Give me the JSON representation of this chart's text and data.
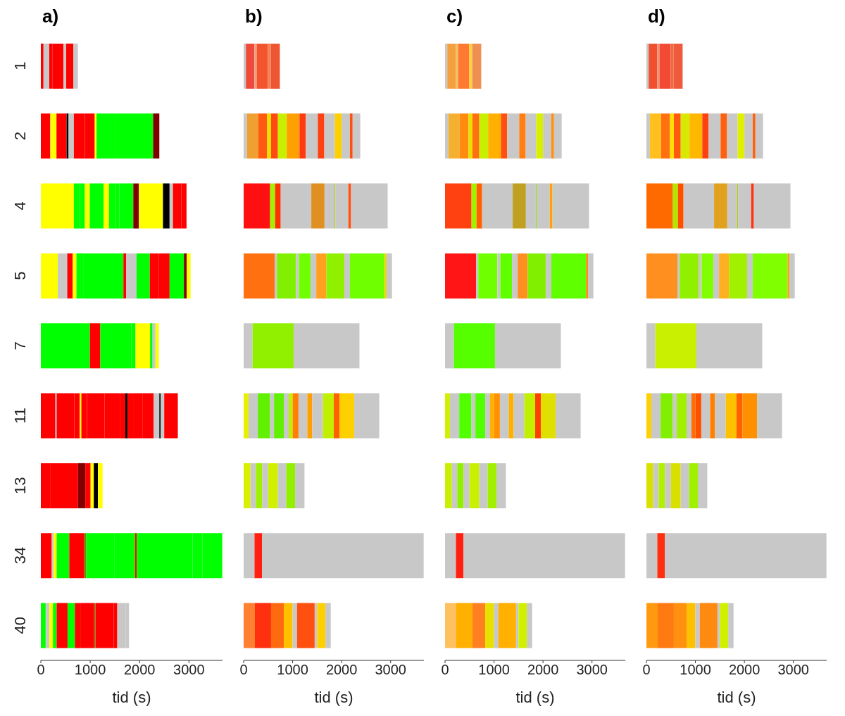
{
  "chart_data": [
    {
      "type": "bar",
      "title": "a)",
      "xlabel": "tid (s)",
      "orientation": "horizontal",
      "stacked": true,
      "categories": [
        "1",
        "2",
        "4",
        "5",
        "7",
        "11",
        "13",
        "34",
        "40"
      ],
      "xlim": [
        0,
        3680
      ],
      "xticks": [
        0,
        1000,
        2000,
        3000
      ],
      "series": [
        {
          "values": [
            54,
            192,
            669,
            343,
            994,
            295,
            187,
            221,
            98
          ],
          "colors": [
            "#ff0000",
            "#ff0000",
            "#ffff00",
            "#ffff00",
            "#00ff00",
            "#ff0000",
            "#ff0000",
            "#ff0000",
            "#00ff00"
          ]
        },
        {
          "values": [
            116,
            125,
            120,
            192,
            211,
            25,
            566,
            40,
            74
          ],
          "colors": [
            "#c8c8c8",
            "#ffff00",
            "#00ff00",
            "#c8c8c8",
            "#ff0000",
            "#c8c8c8",
            "#ff0000",
            "#c8c8c8",
            "#c8c8c8"
          ]
        },
        {
          "values": [
            62,
            205,
            103,
            111,
            630,
            359,
            147,
            59,
            74
          ],
          "colors": [
            "#ff0000",
            "#ff0000",
            "#00ff00",
            "#ff0000",
            "#00ff00",
            "#ff0000",
            "#800000",
            "#ffff00",
            "#ffff00"
          ]
        },
        {
          "values": [
            228,
            40,
            98,
            76,
            83,
            108,
            108,
            256,
            74
          ],
          "colors": [
            "#ff0000",
            "#000000",
            "#ffff00",
            "#ffff00",
            "#00ff00",
            "#ff0000",
            "#ff0000",
            "#00ff00",
            "#00ff00"
          ]
        },
        {
          "values": [
            53,
            107,
            281,
            147,
            295,
            34,
            64,
            295,
            221
          ],
          "colors": [
            "#c8c8c8",
            "#c8c8c8",
            "#00ff00",
            "#00ff00",
            "#ffff00",
            "#ffff00",
            "#ffff00",
            "#ff0000",
            "#ff0000"
          ]
        },
        {
          "values": [
            147,
            223,
            111,
            803,
            50,
            114,
            84,
            49,
            148
          ],
          "colors": [
            "#ff0000",
            "#ff0000",
            "#ffff00",
            "#00ff00",
            "#00ff00",
            "#ff0000",
            "#000000",
            "#808000",
            "#00ff00"
          ]
        },
        {
          "values": [
            90,
            200,
            120,
            58,
            59,
            354,
            94,
            566,
            123
          ],
          "colors": [
            "#c8c8c8",
            "#ff0000",
            "#00ff00",
            "#ff0000",
            "#c8c8c8",
            "#ff0000",
            "#ffff00",
            "#00ff00",
            "#ff0000"
          ]
        },
        {
          "values": [
            null,
            36,
            90,
            209,
            68,
            310,
            null,
            423,
            270
          ],
          "colors": [
            null,
            "#ffff00",
            "#00ff00",
            "#c8c8c8",
            "#ffff00",
            "#ff0000",
            null,
            "#00ff00",
            "#ff0000"
          ]
        },
        {
          "values": [
            null,
            397,
            281,
            268,
            null,
            113,
            null,
            34,
            25
          ],
          "colors": [
            null,
            "#00ff00",
            "#00ff00",
            "#00ff00",
            null,
            "#ff0000",
            null,
            "#ff0000",
            "#808000"
          ]
        },
        {
          "values": [
            null,
            749,
            111,
            178,
            null,
            44,
            null,
            1131,
            369
          ],
          "colors": [
            null,
            "#00ff00",
            "#800000",
            "#ff0000",
            null,
            "#000000",
            null,
            "#00ff00",
            "#ff0000"
          ]
        },
        {
          "values": [
            null,
            126,
            490,
            223,
            null,
            113,
            null,
            197,
            73
          ],
          "colors": [
            null,
            "#800000",
            "#ffff00",
            "#ff0000",
            null,
            "#ff0000",
            null,
            "#00ff00",
            "#ff0000"
          ]
        },
        {
          "values": [
            null,
            null,
            134,
            290,
            null,
            197,
            null,
            404,
            173
          ],
          "colors": [
            null,
            null,
            "#000000",
            "#00ff00",
            null,
            "#ff0000",
            null,
            "#00ff00",
            "#c8c8c8"
          ]
        },
        {
          "values": [
            null,
            null,
            67,
            58,
            null,
            221,
            null,
            null,
            64
          ],
          "colors": [
            null,
            null,
            "#c8c8c8",
            "#800000",
            null,
            "#ff0000",
            null,
            null,
            "#c8c8c8"
          ]
        },
        {
          "values": [
            null,
            null,
            169,
            76,
            null,
            113,
            null,
            null,
            null
          ],
          "colors": [
            null,
            null,
            "#ff0000",
            "#ffff00",
            null,
            "#c8c8c8",
            null,
            null,
            null
          ]
        },
        {
          "values": [
            null,
            null,
            107,
            null,
            null,
            25,
            null,
            null,
            null
          ],
          "colors": [
            null,
            null,
            "#ff0000",
            null,
            null,
            "#000000",
            null,
            null,
            null
          ]
        },
        {
          "values": [
            null,
            null,
            null,
            null,
            null,
            74,
            null,
            null,
            null
          ],
          "colors": [
            null,
            null,
            null,
            null,
            null,
            "#c8c8c8",
            null,
            null,
            null
          ]
        },
        {
          "values": [
            null,
            null,
            null,
            null,
            null,
            276,
            null,
            null,
            null
          ],
          "colors": [
            null,
            null,
            null,
            null,
            null,
            "#ff0000",
            null,
            null,
            null
          ]
        }
      ]
    },
    {
      "type": "bar",
      "title": "b)",
      "xlabel": "tid (s)",
      "orientation": "horizontal",
      "stacked": true,
      "tick_labels": "x",
      "categories": [
        null,
        null,
        null,
        null,
        null,
        null,
        null,
        null,
        null
      ],
      "xlim": [
        0,
        3680
      ],
      "xticks": [
        0,
        1000,
        2000,
        3000
      ],
      "series": [
        {
          "values": [
            46,
            70,
            541,
            633,
            182,
            100,
            140,
            222,
            230
          ],
          "colors": [
            "#c8c8c8",
            "#c8c8c8",
            "#ff1010",
            "#ff7010",
            "#c8c8c8",
            "#e8f000",
            "#d8f000",
            "#c8c8c8",
            "#ff8030"
          ]
        },
        {
          "values": [
            174,
            230,
            101,
            46,
            838,
            190,
            110,
            152,
            330
          ],
          "colors": [
            "#f04a3a",
            "#f0a030",
            "#a0f000",
            "#c8c8c8",
            "#90f000",
            "#c8c8c8",
            "#c8c8c8",
            "#ff2010",
            "#ff3010"
          ]
        },
        {
          "values": [
            46,
            180,
            115,
            390,
            1344,
            250,
            130,
            3301,
            260
          ],
          "colors": [
            "#f0a080",
            "#ff5a10",
            "#ff3000",
            "#80f000",
            "#c8c8c8",
            "#60f000",
            "#a0f000",
            "#c8c8c8",
            "#ff6a10"
          ]
        },
        {
          "values": [
            229,
            80,
            624,
            59,
            null,
            80,
            120,
            null,
            180
          ],
          "colors": [
            "#f2552d",
            "#e8e000",
            "#c8c8c8",
            "#c8c8c8",
            null,
            "#c8c8c8",
            "#c8c8c8",
            null,
            "#ffc000"
          ]
        },
        {
          "values": [
            60,
            140,
            270,
            239,
            null,
            200,
            200,
            null,
            90
          ],
          "colors": [
            "#f58050",
            "#ff4a10",
            "#e09020",
            "#70ff00",
            null,
            "#60f000",
            "#d0f000",
            null,
            "#c8c8c8"
          ]
        },
        {
          "values": [
            184,
            180,
            202,
            115,
            null,
            100,
            170,
            null,
            360
          ],
          "colors": [
            "#ee5533",
            "#c8ef00",
            "#c8c8c8",
            "#c8c8c8",
            null,
            "#c8c8c8",
            "#c8c8c8",
            null,
            "#ff5010"
          ]
        },
        {
          "values": [
            null,
            260,
            19,
            206,
            null,
            80,
            180,
            null,
            50
          ],
          "colors": [
            null,
            "#ffa000",
            "#b0d000",
            "#ffa020",
            null,
            "#c0f000",
            "#90f000",
            null,
            "#c8c8c8"
          ]
        },
        {
          "values": [
            null,
            130,
            266,
            367,
            null,
            120,
            192,
            null,
            170
          ],
          "colors": [
            null,
            "#ff3a10",
            "#c8c8c8",
            "#90f000",
            null,
            "#ff8000",
            "#c8c8c8",
            null,
            "#ffd000"
          ]
        },
        {
          "values": [
            null,
            244,
            55,
            115,
            null,
            180,
            null,
            null,
            108
          ],
          "colors": [
            null,
            "#c8c8c8",
            "#ff5010",
            "#c8c8c8",
            null,
            "#c8c8c8",
            null,
            null,
            "#c8c8c8"
          ]
        },
        {
          "values": [
            null,
            133,
            747,
            711,
            null,
            100,
            null,
            null,
            null
          ],
          "colors": [
            null,
            "#ff4010",
            "#c8c8c8",
            "#70ff00",
            null,
            "#ffa000",
            null,
            null,
            null
          ]
        },
        {
          "values": [
            null,
            215,
            null,
            36,
            null,
            220,
            null,
            null,
            null
          ],
          "colors": [
            null,
            "#c8c8c8",
            null,
            "#ffd000",
            null,
            "#c8c8c8",
            null,
            null,
            null
          ]
        },
        {
          "values": [
            null,
            138,
            null,
            111,
            null,
            220,
            null,
            null,
            null
          ],
          "colors": [
            null,
            "#ffd000",
            null,
            "#c8c8c8",
            null,
            "#c0f000",
            null,
            null,
            null
          ]
        },
        {
          "values": [
            null,
            170,
            null,
            null,
            null,
            120,
            null,
            null,
            null
          ],
          "colors": [
            null,
            "#c8c8c8",
            null,
            null,
            null,
            "#ff6000",
            null,
            null,
            null
          ]
        },
        {
          "values": [
            null,
            55,
            null,
            null,
            null,
            298,
            null,
            null,
            null
          ],
          "colors": [
            null,
            "#ff5010",
            null,
            null,
            null,
            "#ffd000",
            null,
            null,
            null
          ]
        },
        {
          "values": [
            null,
            156,
            null,
            null,
            null,
            510,
            null,
            null,
            null
          ],
          "colors": [
            null,
            "#c8c8c8",
            null,
            null,
            null,
            "#c8c8c8",
            null,
            null,
            null
          ]
        }
      ]
    },
    {
      "type": "bar",
      "title": "c)",
      "xlabel": "tid (s)",
      "orientation": "horizontal",
      "stacked": true,
      "tick_labels": "x",
      "categories": [
        null,
        null,
        null,
        null,
        null,
        null,
        null,
        null,
        null
      ],
      "xlim": [
        0,
        3680
      ],
      "xticks": [
        0,
        1000,
        2000,
        3000
      ],
      "series": [
        {
          "values": [
            46,
            70,
            541,
            633,
            182,
            100,
            140,
            222,
            230
          ],
          "colors": [
            "#c8c8c8",
            "#c8c8c8",
            "#ff4010",
            "#ff1515",
            "#c8c8c8",
            "#d0f000",
            "#c8f000",
            "#c8c8c8",
            "#ffc060"
          ]
        },
        {
          "values": [
            174,
            230,
            101,
            46,
            838,
            190,
            110,
            152,
            330
          ],
          "colors": [
            "#f5a040",
            "#f5b030",
            "#a0f000",
            "#c8c8c8",
            "#55ff00",
            "#c8c8c8",
            "#c8c8c8",
            "#ff2010",
            "#ffb000"
          ]
        },
        {
          "values": [
            46,
            180,
            115,
            390,
            1344,
            250,
            130,
            3301,
            260
          ],
          "colors": [
            "#f0c060",
            "#ff8a10",
            "#ff6000",
            "#70ff00",
            "#c8c8c8",
            "#50ff00",
            "#90f000",
            "#c8c8c8",
            "#ff8020"
          ]
        },
        {
          "values": [
            229,
            80,
            624,
            59,
            null,
            80,
            120,
            null,
            180
          ],
          "colors": [
            "#ff7a30",
            "#e8e000",
            "#c8c8c8",
            "#c8c8c8",
            null,
            "#c8c8c8",
            "#c8c8c8",
            null,
            "#e8e000"
          ]
        },
        {
          "values": [
            60,
            140,
            270,
            239,
            null,
            200,
            200,
            null,
            90
          ],
          "colors": [
            "#ffd040",
            "#ff7010",
            "#c0a020",
            "#60ff00",
            null,
            "#50ff00",
            "#c8f000",
            null,
            "#c8c8c8"
          ]
        },
        {
          "values": [
            184,
            180,
            202,
            115,
            null,
            100,
            170,
            null,
            360
          ],
          "colors": [
            "#f09050",
            "#c8ef00",
            "#c8c8c8",
            "#c8c8c8",
            null,
            "#c8c8c8",
            "#c8c8c8",
            null,
            "#ffb000"
          ]
        },
        {
          "values": [
            null,
            260,
            19,
            206,
            null,
            80,
            180,
            null,
            50
          ],
          "colors": [
            null,
            "#ffb000",
            "#90e000",
            "#ff9020",
            null,
            "#ffb000",
            "#a0f000",
            null,
            "#c8c8c8"
          ]
        },
        {
          "values": [
            null,
            130,
            266,
            367,
            null,
            120,
            192,
            null,
            170
          ],
          "colors": [
            null,
            "#ff5010",
            "#c8c8c8",
            "#80f000",
            null,
            "#ff9000",
            "#c8c8c8",
            null,
            "#d0f000"
          ]
        },
        {
          "values": [
            null,
            244,
            55,
            115,
            null,
            180,
            null,
            null,
            108
          ],
          "colors": [
            null,
            "#c8c8c8",
            "#ffa010",
            "#c8c8c8",
            null,
            "#c8c8c8",
            null,
            null,
            "#c8c8c8"
          ]
        },
        {
          "values": [
            null,
            133,
            747,
            711,
            null,
            100,
            null,
            null,
            null
          ],
          "colors": [
            null,
            "#ff8010",
            "#c8c8c8",
            "#60ff00",
            null,
            "#ffb000",
            null,
            null,
            null
          ]
        },
        {
          "values": [
            null,
            215,
            null,
            36,
            null,
            220,
            null,
            null,
            null
          ],
          "colors": [
            null,
            "#c8c8c8",
            null,
            "#ff8000",
            null,
            "#c8c8c8",
            null,
            null,
            null
          ]
        },
        {
          "values": [
            null,
            138,
            null,
            111,
            null,
            220,
            null,
            null,
            null
          ],
          "colors": [
            null,
            "#d8f000",
            null,
            "#c8c8c8",
            null,
            "#c0f000",
            null,
            null,
            null
          ]
        },
        {
          "values": [
            null,
            170,
            null,
            null,
            null,
            120,
            null,
            null,
            null
          ],
          "colors": [
            null,
            "#c8c8c8",
            null,
            null,
            null,
            "#ff4000",
            null,
            null,
            null
          ]
        },
        {
          "values": [
            null,
            55,
            null,
            null,
            null,
            298,
            null,
            null,
            null
          ],
          "colors": [
            null,
            "#ff9010",
            null,
            null,
            null,
            "#e0e000",
            null,
            null,
            null
          ]
        },
        {
          "values": [
            null,
            156,
            null,
            null,
            null,
            510,
            null,
            null,
            null
          ],
          "colors": [
            null,
            "#c8c8c8",
            null,
            null,
            null,
            "#c8c8c8",
            null,
            null,
            null
          ]
        }
      ]
    },
    {
      "type": "bar",
      "title": "d)",
      "xlabel": "tid (s)",
      "orientation": "horizontal",
      "stacked": true,
      "tick_labels": "x",
      "categories": [
        null,
        null,
        null,
        null,
        null,
        null,
        null,
        null,
        null
      ],
      "xlim": [
        0,
        3680
      ],
      "xticks": [
        0,
        1000,
        2000,
        3000
      ],
      "series": [
        {
          "values": [
            46,
            70,
            541,
            633,
            182,
            100,
            140,
            222,
            230
          ],
          "colors": [
            "#c8c8c8",
            "#c8c8c8",
            "#ff6a00",
            "#ff9020",
            "#c8c8c8",
            "#ffd000",
            "#d8e000",
            "#c8c8c8",
            "#ff9a10"
          ]
        },
        {
          "values": [
            174,
            230,
            101,
            46,
            838,
            190,
            110,
            152,
            330
          ],
          "colors": [
            "#f05030",
            "#ffc020",
            "#b0e800",
            "#c8c8c8",
            "#c8f000",
            "#c8c8c8",
            "#c8c8c8",
            "#ff3010",
            "#ff7a10"
          ]
        },
        {
          "values": [
            46,
            180,
            115,
            390,
            1344,
            250,
            130,
            3301,
            260
          ],
          "colors": [
            "#f09070",
            "#ff7010",
            "#ff5000",
            "#90f000",
            "#c8c8c8",
            "#80f000",
            "#b0f000",
            "#c8c8c8",
            "#ff9010"
          ]
        },
        {
          "values": [
            229,
            80,
            624,
            59,
            null,
            80,
            120,
            null,
            180
          ],
          "colors": [
            "#f24a35",
            "#ffe000",
            "#c8c8c8",
            "#c8c8c8",
            null,
            "#c8c8c8",
            "#c8c8c8",
            null,
            "#ffc000"
          ]
        },
        {
          "values": [
            60,
            140,
            270,
            239,
            null,
            200,
            200,
            null,
            90
          ],
          "colors": [
            "#f06a40",
            "#ff5a10",
            "#e0a020",
            "#80ff00",
            null,
            "#a0f000",
            "#d8e000",
            null,
            "#c8c8c8"
          ]
        },
        {
          "values": [
            184,
            180,
            202,
            115,
            null,
            100,
            170,
            null,
            360
          ],
          "colors": [
            "#ee5a3a",
            "#d8e800",
            "#c8c8c8",
            "#c8c8c8",
            null,
            "#c8c8c8",
            "#c8c8c8",
            null,
            "#ff8a10"
          ]
        },
        {
          "values": [
            null,
            260,
            19,
            206,
            null,
            80,
            180,
            null,
            50
          ],
          "colors": [
            null,
            "#ffb800",
            "#b0d000",
            "#ffb020",
            null,
            "#ff7000",
            "#a0f000",
            null,
            "#c8c8c8"
          ]
        },
        {
          "values": [
            null,
            130,
            266,
            367,
            null,
            120,
            192,
            null,
            170
          ],
          "colors": [
            null,
            "#ff4010",
            "#c8c8c8",
            "#a0f000",
            null,
            "#ff5000",
            "#c8c8c8",
            null,
            "#d0f000"
          ]
        },
        {
          "values": [
            null,
            244,
            55,
            115,
            null,
            180,
            null,
            null,
            108
          ],
          "colors": [
            null,
            "#c8c8c8",
            "#ff3010",
            "#c8c8c8",
            null,
            "#c8c8c8",
            null,
            null,
            "#c8c8c8"
          ]
        },
        {
          "values": [
            null,
            133,
            747,
            711,
            null,
            100,
            null,
            null,
            null
          ],
          "colors": [
            null,
            "#ff6010",
            "#c8c8c8",
            "#80ff00",
            null,
            "#ff8000",
            null,
            null,
            null
          ]
        },
        {
          "values": [
            null,
            215,
            null,
            36,
            null,
            220,
            null,
            null,
            null
          ],
          "colors": [
            null,
            "#c8c8c8",
            null,
            "#ffa000",
            null,
            "#c8c8c8",
            null,
            null,
            null
          ]
        },
        {
          "values": [
            null,
            138,
            null,
            111,
            null,
            220,
            null,
            null,
            null
          ],
          "colors": [
            null,
            "#e0f000",
            null,
            "#c8c8c8",
            null,
            "#ffc000",
            null,
            null,
            null
          ]
        },
        {
          "values": [
            null,
            170,
            null,
            null,
            null,
            120,
            null,
            null,
            null
          ],
          "colors": [
            null,
            "#c8c8c8",
            null,
            null,
            null,
            "#ff6000",
            null,
            null,
            null
          ]
        },
        {
          "values": [
            null,
            55,
            null,
            null,
            null,
            298,
            null,
            null,
            null
          ],
          "colors": [
            null,
            "#ff6010",
            null,
            null,
            null,
            "#ff9000",
            null,
            null,
            null
          ]
        },
        {
          "values": [
            null,
            156,
            null,
            null,
            null,
            510,
            null,
            null,
            null
          ],
          "colors": [
            null,
            "#c8c8c8",
            null,
            null,
            null,
            "#c8c8c8",
            null,
            null,
            null
          ]
        }
      ]
    }
  ]
}
